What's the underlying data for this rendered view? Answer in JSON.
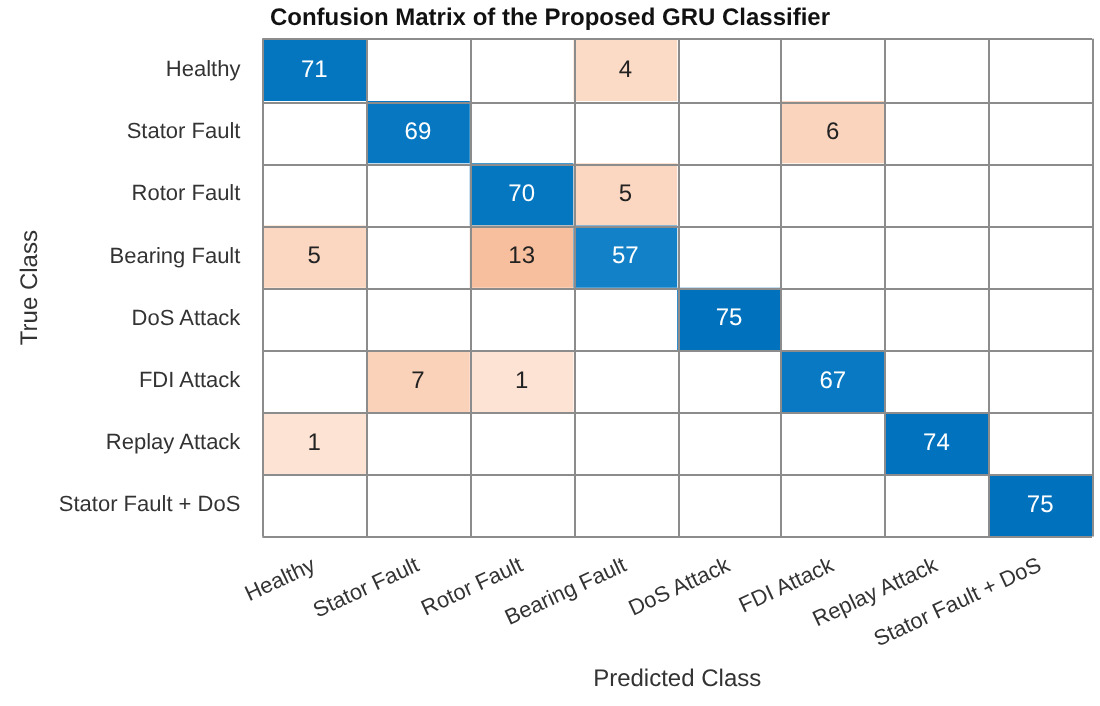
{
  "chart_data": {
    "type": "heatmap",
    "title": "Confusion Matrix of the Proposed GRU Classifier",
    "xlabel": "Predicted Class",
    "ylabel": "True Class",
    "categories": [
      "Healthy",
      "Stator Fault",
      "Rotor Fault",
      "Bearing Fault",
      "DoS Attack",
      "FDI Attack",
      "Replay Attack",
      "Stator Fault + DoS"
    ],
    "y_categories": [
      "Healthy",
      "Stator Fault",
      "Rotor Fault",
      "Bearing Fault",
      "DoS Attack",
      "FDI Attack",
      "Replay Attack",
      "Stator Fault + DoS"
    ],
    "cells": [
      [
        71,
        null,
        null,
        4,
        null,
        null,
        null,
        null
      ],
      [
        null,
        69,
        null,
        null,
        null,
        6,
        null,
        null
      ],
      [
        null,
        null,
        70,
        5,
        null,
        null,
        null,
        null
      ],
      [
        5,
        null,
        13,
        57,
        null,
        null,
        null,
        null
      ],
      [
        null,
        null,
        null,
        null,
        75,
        null,
        null,
        null
      ],
      [
        null,
        7,
        1,
        null,
        null,
        67,
        null,
        null
      ],
      [
        1,
        null,
        null,
        null,
        null,
        null,
        74,
        null
      ],
      [
        null,
        null,
        null,
        null,
        null,
        null,
        null,
        75
      ]
    ],
    "data_labels": true,
    "grid": true
  }
}
